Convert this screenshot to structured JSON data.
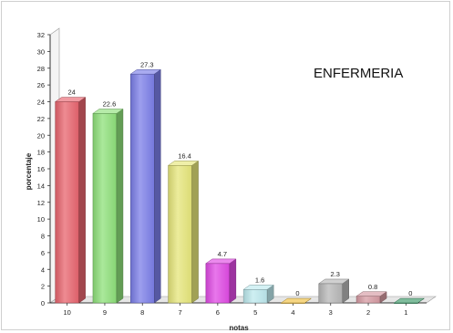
{
  "chart_data": {
    "type": "bar",
    "title": "ENFERMERIA",
    "xlabel": "notas",
    "ylabel": "porcentaje",
    "categories": [
      "10",
      "9",
      "8",
      "7",
      "6",
      "5",
      "4",
      "3",
      "2",
      "1"
    ],
    "values": [
      24,
      22.6,
      27.3,
      16.4,
      4.7,
      1.6,
      0,
      2.3,
      0.8,
      0
    ],
    "data_labels": [
      "24",
      "22.6",
      "27.3",
      "16.4",
      "4.7",
      "1.6",
      "0",
      "2.3",
      "0.8",
      "0"
    ],
    "ylim": [
      0,
      32
    ],
    "yticks": [
      "0",
      "2",
      "4",
      "6",
      "8",
      "10",
      "12",
      "14",
      "16",
      "18",
      "20",
      "22",
      "24",
      "26",
      "28",
      "30",
      "32"
    ],
    "grid": false,
    "legend": "none",
    "bar_style": "3d",
    "colors": [
      "#e8646e",
      "#8ee07a",
      "#7b7ee8",
      "#e6e67a",
      "#e04ae4",
      "#bde9ee",
      "#f1c040",
      "#b7b7b7",
      "#d69aa2",
      "#3b9a68"
    ]
  }
}
